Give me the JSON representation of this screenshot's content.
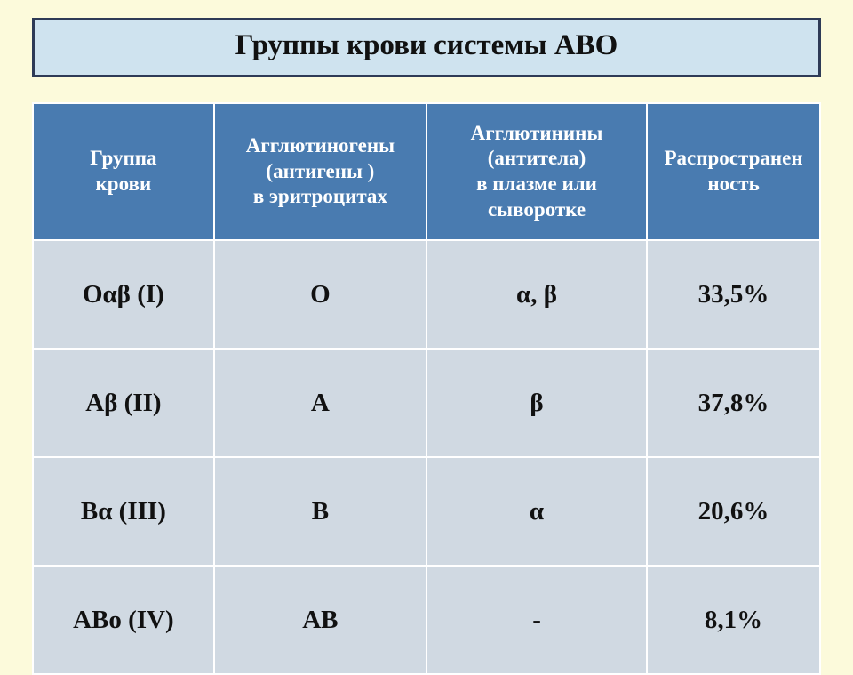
{
  "title": "Группы крови системы АВО",
  "table": {
    "columns": [
      {
        "lines": [
          "Группа",
          "крови"
        ]
      },
      {
        "lines": [
          "Агглютиногены",
          "(антигены )",
          "в эритроцитах"
        ]
      },
      {
        "lines": [
          "Агглютинины",
          "(антитела)",
          "в плазме или",
          "сыворотке"
        ]
      },
      {
        "lines": [
          "Распространен",
          "ность"
        ]
      }
    ],
    "rows": [
      [
        "Оαβ (I)",
        "О",
        "α, β",
        "33,5%"
      ],
      [
        "Аβ (II)",
        "А",
        "β",
        "37,8%"
      ],
      [
        "Вα (III)",
        "В",
        "α",
        "20,6%"
      ],
      [
        "АВо (IV)",
        "АВ",
        "-",
        "8,1%"
      ]
    ]
  },
  "colors": {
    "page_bg": "#fcfadb",
    "title_bg": "#cfe3ef",
    "title_border": "#2e3a56",
    "header_bg": "#497bb0",
    "header_fg": "#ffffff",
    "cell_bg": "#d0d9e2",
    "cell_border": "#ffffff"
  }
}
